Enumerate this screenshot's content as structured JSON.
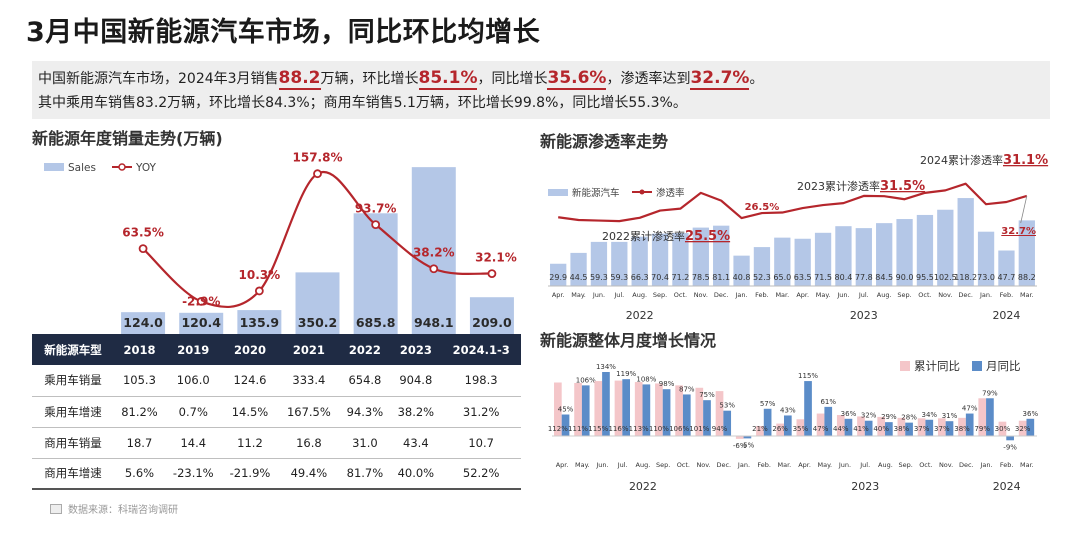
{
  "title": "3月中国新能源汽车市场，同比环比均增长",
  "summary": {
    "l1_a": "中国新能源汽车市场，2024年3月销售",
    "l1_v1": "88.2",
    "l1_b": "万辆，环比增长",
    "l1_v2": "85.1%",
    "l1_c": "，同比增长",
    "l1_v3": "35.6%",
    "l1_d": "，渗透率达到",
    "l1_v4": "32.7%",
    "l1_e": "。",
    "line2": "其中乘用车销售83.2万辆，环比增长84.3%；商用车销售5.1万辆，环比增长99.8%，同比增长55.3%。"
  },
  "annual": {
    "section_title": "新能源年度销量走势(万辆)"
  },
  "penetration": {
    "section_title": "新能源渗透率走势"
  },
  "monthly": {
    "section_title": "新能源整体月度增长情况"
  },
  "table": {
    "headers": [
      "新能源车型",
      "2018",
      "2019",
      "2020",
      "2021",
      "2022",
      "2023",
      "2024.1-3"
    ],
    "rows": [
      [
        "乘用车销量",
        "105.3",
        "106.0",
        "124.6",
        "333.4",
        "654.8",
        "904.8",
        "198.3"
      ],
      [
        "乘用车增速",
        "81.2%",
        "0.7%",
        "14.5%",
        "167.5%",
        "94.3%",
        "38.2%",
        "31.2%"
      ],
      [
        "商用车销量",
        "18.7",
        "14.4",
        "11.2",
        "16.8",
        "31.0",
        "43.4",
        "10.7"
      ],
      [
        "商用车增速",
        "5.6%",
        "-23.1%",
        "-21.9%",
        "49.4%",
        "81.7%",
        "40.0%",
        "52.2%"
      ]
    ]
  },
  "source": "数据来源：科瑞咨询调研",
  "colors": {
    "bar": "#b4c7e7",
    "bar_dark": "#5b8cc8",
    "line": "#b5262c",
    "pink": "#f4c6c9",
    "header": "#1f2b44"
  },
  "chart_data": [
    {
      "type": "bar",
      "title": "新能源年度销量走势(万辆)",
      "categories": [
        "2018",
        "2019",
        "2020",
        "2021",
        "2022",
        "2023",
        "2024.1-3"
      ],
      "series": [
        {
          "name": "Sales",
          "values": [
            124.0,
            120.4,
            135.9,
            350.2,
            685.8,
            948.1,
            209.0
          ],
          "labels": [
            "124.0",
            "120.4",
            "135.9",
            "350.2",
            "685.8",
            "948.1",
            "209.0"
          ]
        },
        {
          "name": "YOY",
          "values": [
            63.5,
            -2.9,
            10.3,
            157.8,
            93.7,
            38.2,
            32.1
          ],
          "labels": [
            "63.5%",
            "-2.9%",
            "10.3%",
            "157.8%",
            "93.7%",
            "38.2%",
            "32.1%"
          ]
        }
      ],
      "ylim_sales": [
        0,
        1000
      ],
      "ylim_yoy": [
        -20,
        170
      ]
    },
    {
      "type": "bar",
      "title": "新能源渗透率走势",
      "categories": [
        "Apr.",
        "May.",
        "Jun.",
        "Jul.",
        "Aug.",
        "Sep.",
        "Oct.",
        "Nov.",
        "Dec.",
        "Jan.",
        "Feb.",
        "Mar.",
        "Apr.",
        "May.",
        "Jun.",
        "Jul.",
        "Aug.",
        "Sep.",
        "Oct.",
        "Nov.",
        "Dec.",
        "Jan.",
        "Feb.",
        "Mar."
      ],
      "year_labels": [
        "2022",
        "2023",
        "2024"
      ],
      "series": [
        {
          "name": "新能源汽车",
          "values": [
            29.9,
            44.5,
            59.3,
            59.3,
            66.3,
            70.4,
            71.2,
            78.5,
            81.1,
            40.8,
            52.3,
            65.0,
            63.5,
            71.5,
            80.4,
            77.8,
            84.5,
            90.0,
            95.5,
            102.5,
            118.2,
            73.0,
            47.7,
            88.2
          ],
          "labels": [
            "29.9",
            "44.5",
            "59.3",
            "59.3",
            "66.3",
            "70.4",
            "71.2",
            "78.5",
            "81.1",
            "40.8",
            "52.3",
            "65.0",
            "63.5",
            "71.5",
            "80.4",
            "77.8",
            "84.5",
            "90.0",
            "95.5",
            "102.5",
            "118.2",
            "73.0",
            "47.7",
            "88.2"
          ]
        },
        {
          "name": "渗透率",
          "values": [
            25.0,
            24.0,
            23.8,
            23.6,
            24.8,
            27.4,
            28.1,
            33.8,
            31.0,
            24.7,
            26.5,
            26.7,
            28.3,
            29.4,
            30.1,
            32.7,
            32.6,
            31.5,
            33.8,
            34.7,
            37.1,
            29.7,
            30.5,
            32.7
          ]
        }
      ],
      "annotations": [
        {
          "text": "2022累计渗透率",
          "value": "25.5%"
        },
        {
          "text": "2023累计渗透率",
          "value": "31.5%"
        },
        {
          "text": "2024累计渗透率",
          "value": "31.1%"
        },
        {
          "text": "",
          "value": "26.5%"
        },
        {
          "text": "",
          "value": "32.7%"
        }
      ],
      "ylim_bars": [
        0,
        130
      ],
      "ylim_rate": [
        15,
        40
      ]
    },
    {
      "type": "bar",
      "title": "新能源整体月度增长情况",
      "categories": [
        "Apr.",
        "May.",
        "Jun.",
        "Jul.",
        "Aug.",
        "Sep.",
        "Oct.",
        "Nov.",
        "Dec.",
        "Jan.",
        "Feb.",
        "Mar.",
        "Apr.",
        "May.",
        "Jun.",
        "Jul.",
        "Aug.",
        "Sep.",
        "Oct.",
        "Nov.",
        "Dec.",
        "Jan.",
        "Feb.",
        "Mar."
      ],
      "year_labels": [
        "2022",
        "2023",
        "2024"
      ],
      "series": [
        {
          "name": "累计同比",
          "values": [
            112,
            111,
            115,
            116,
            113,
            110,
            106,
            101,
            94,
            -6,
            21,
            26,
            35,
            47,
            44,
            41,
            40,
            38,
            37,
            37,
            38,
            79,
            30,
            32
          ],
          "labels": [
            "112%",
            "111%",
            "115%",
            "116%",
            "113%",
            "110%",
            "106%",
            "101%",
            "94%",
            "-6%",
            "21%",
            "26%",
            "35%",
            "47%",
            "44%",
            "41%",
            "40%",
            "38%",
            "37%",
            "37%",
            "38%",
            "79%",
            "30%",
            "32%"
          ]
        },
        {
          "name": "月同比",
          "values": [
            45,
            106,
            134,
            119,
            108,
            98,
            87,
            75,
            53,
            -5,
            57,
            43,
            115,
            61,
            36,
            32,
            29,
            28,
            34,
            31,
            47,
            79,
            -9,
            36
          ],
          "labels": [
            "45%",
            "106%",
            "134%",
            "119%",
            "108%",
            "98%",
            "87%",
            "75%",
            "53%",
            "-5%",
            "57%",
            "43%",
            "115%",
            "61%",
            "36%",
            "32%",
            "29%",
            "28%",
            "34%",
            "31%",
            "47%",
            "79%",
            "-9%",
            "36%"
          ]
        }
      ],
      "ylim": [
        -20,
        140
      ]
    }
  ]
}
